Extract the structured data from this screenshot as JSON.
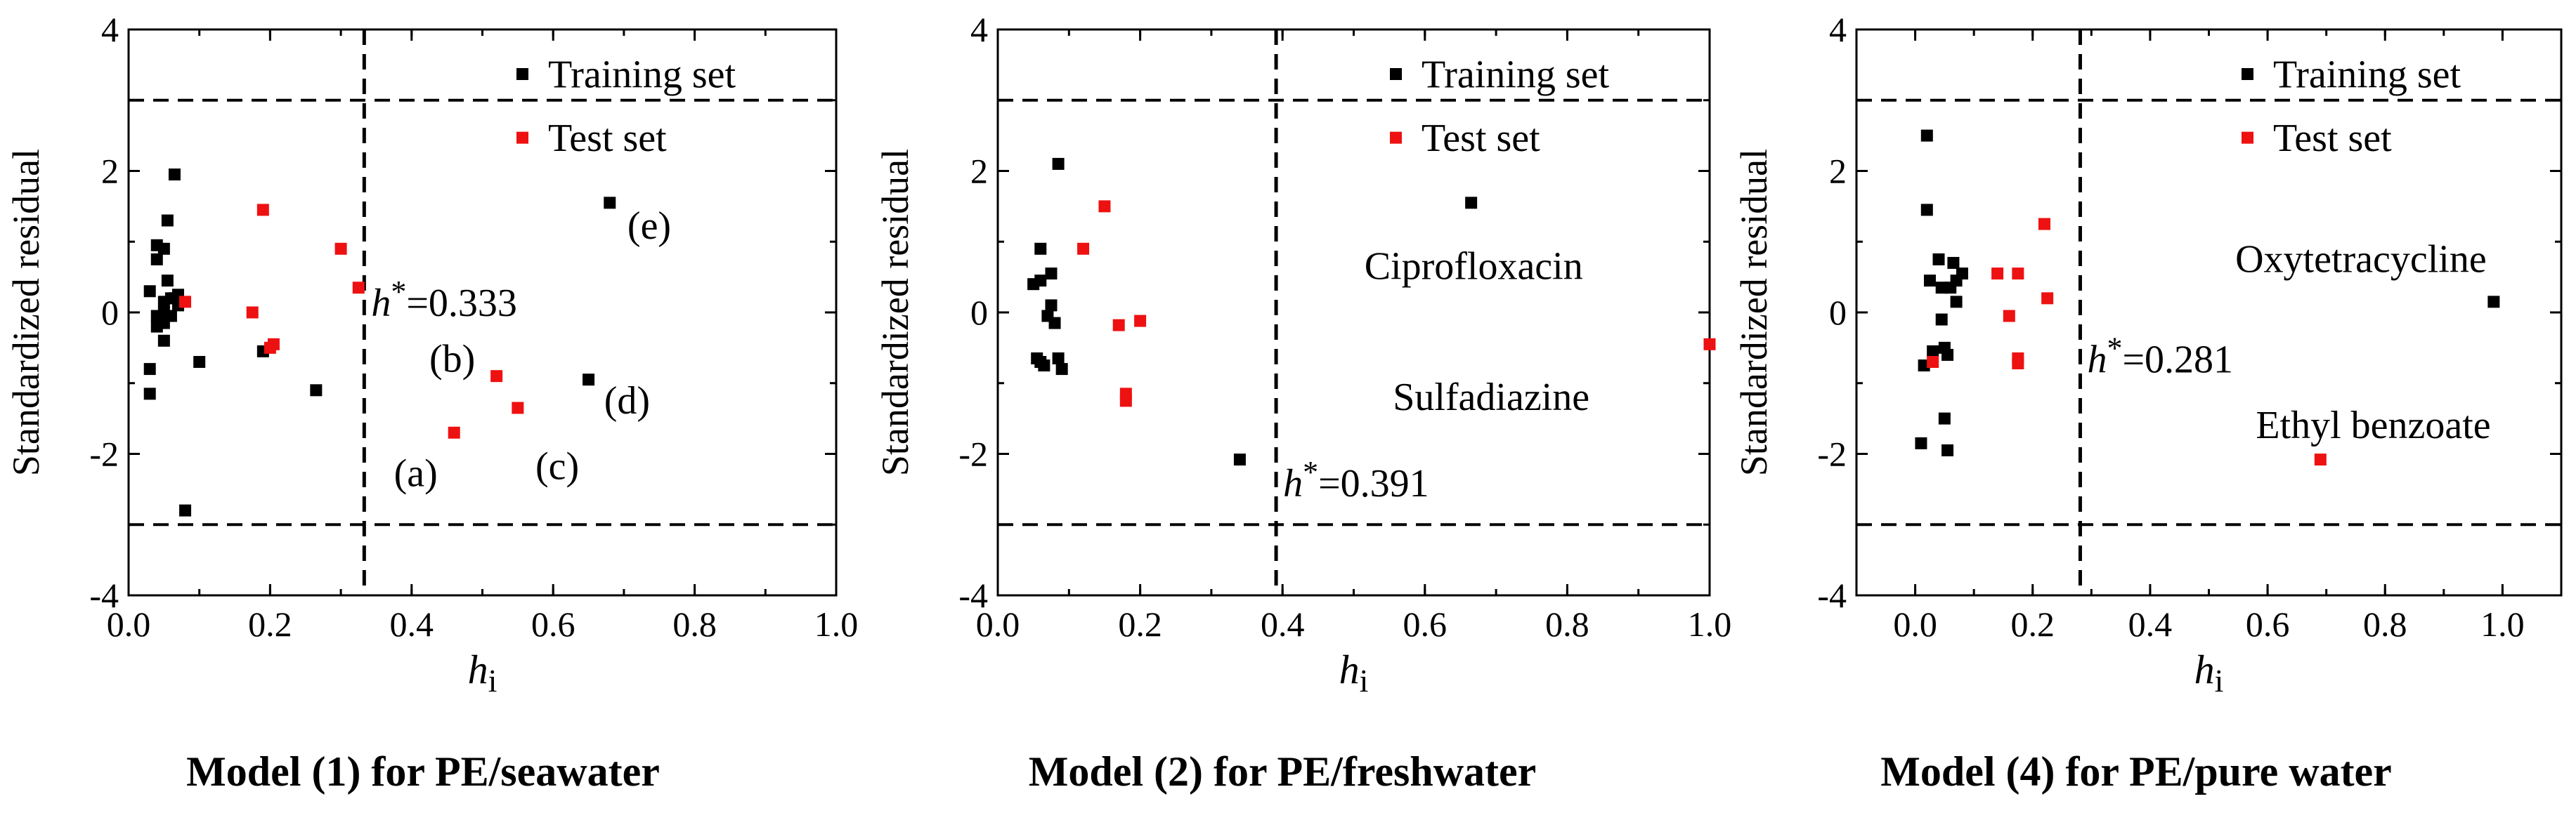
{
  "colors": {
    "training": "#000000",
    "test": "#ee1111",
    "axis": "#000000"
  },
  "chart_data": [
    {
      "type": "scatter",
      "caption": "Model (1) for PE/seawater",
      "xlabel_main": "h",
      "xlabel_sub": "i",
      "ylabel": "Standardized residual",
      "xlim": [
        0.0,
        1.0
      ],
      "ylim": [
        -4,
        4
      ],
      "xticks": [
        0.0,
        0.2,
        0.4,
        0.6,
        0.8,
        1.0
      ],
      "xtick_labels": [
        "0.0",
        "0.2",
        "0.4",
        "0.6",
        "0.8",
        "1.0"
      ],
      "yticks": [
        -4,
        -2,
        0,
        2,
        4
      ],
      "ytick_labels": [
        "-4",
        "-2",
        "0",
        "2",
        "4"
      ],
      "hstar": 0.333,
      "hstar_label": "=0.333",
      "hlines": [
        3,
        -3
      ],
      "legend": [
        "Training set",
        "Test set"
      ],
      "training": [
        [
          0.03,
          0.3
        ],
        [
          0.03,
          -0.8
        ],
        [
          0.03,
          -1.15
        ],
        [
          0.04,
          0.95
        ],
        [
          0.04,
          0.75
        ],
        [
          0.04,
          -0.05
        ],
        [
          0.04,
          -0.2
        ],
        [
          0.05,
          0.9
        ],
        [
          0.05,
          0.15
        ],
        [
          0.05,
          0.0
        ],
        [
          0.05,
          -0.15
        ],
        [
          0.05,
          -0.4
        ],
        [
          0.055,
          1.3
        ],
        [
          0.055,
          0.45
        ],
        [
          0.06,
          0.2
        ],
        [
          0.06,
          -0.05
        ],
        [
          0.065,
          1.95
        ],
        [
          0.065,
          0.2
        ],
        [
          0.07,
          0.25
        ],
        [
          0.07,
          0.1
        ],
        [
          0.08,
          -2.8
        ],
        [
          0.1,
          -0.7
        ],
        [
          0.19,
          -0.55
        ],
        [
          0.265,
          -1.1
        ],
        [
          0.65,
          -0.95
        ],
        [
          0.68,
          1.55
        ]
      ],
      "test": [
        [
          0.08,
          0.15
        ],
        [
          0.175,
          0.0
        ],
        [
          0.19,
          1.45
        ],
        [
          0.2,
          -0.5
        ],
        [
          0.205,
          -0.45
        ],
        [
          0.3,
          0.9
        ],
        [
          0.325,
          0.35
        ],
        [
          0.46,
          -1.7
        ],
        [
          0.52,
          -0.9
        ],
        [
          0.55,
          -1.35
        ]
      ],
      "annotations": [
        {
          "text": "(a)",
          "x": 0.375,
          "y": -2.28
        },
        {
          "text": "(b)",
          "x": 0.425,
          "y": -0.66
        },
        {
          "text": "(c)",
          "x": 0.575,
          "y": -2.18
        },
        {
          "text": "(d)",
          "x": 0.672,
          "y": -1.25
        },
        {
          "text": "(e)",
          "x": 0.705,
          "y": 1.22
        }
      ]
    },
    {
      "type": "scatter",
      "caption": "Model (2) for PE/freshwater",
      "xlabel_main": "h",
      "xlabel_sub": "i",
      "ylabel": "Standardized residual",
      "xlim": [
        0.0,
        1.0
      ],
      "ylim": [
        -4,
        4
      ],
      "xticks": [
        0.0,
        0.2,
        0.4,
        0.6,
        0.8,
        1.0
      ],
      "xtick_labels": [
        "0.0",
        "0.2",
        "0.4",
        "0.6",
        "0.8",
        "1.0"
      ],
      "yticks": [
        -4,
        -2,
        0,
        2,
        4
      ],
      "ytick_labels": [
        "-4",
        "-2",
        "0",
        "2",
        "4"
      ],
      "hstar": 0.391,
      "hstar_label": "=0.391",
      "hlines": [
        3,
        -3
      ],
      "legend": [
        "Training set",
        "Test set"
      ],
      "training": [
        [
          0.05,
          0.4
        ],
        [
          0.055,
          -0.65
        ],
        [
          0.06,
          0.9
        ],
        [
          0.06,
          0.45
        ],
        [
          0.06,
          -0.7
        ],
        [
          0.065,
          -0.75
        ],
        [
          0.07,
          -0.05
        ],
        [
          0.075,
          0.55
        ],
        [
          0.075,
          0.1
        ],
        [
          0.08,
          -0.15
        ],
        [
          0.085,
          2.1
        ],
        [
          0.085,
          -0.65
        ],
        [
          0.09,
          -0.8
        ],
        [
          0.34,
          -2.08
        ],
        [
          0.665,
          1.55
        ]
      ],
      "test": [
        [
          0.12,
          0.9
        ],
        [
          0.15,
          1.5
        ],
        [
          0.17,
          -0.18
        ],
        [
          0.18,
          -1.15
        ],
        [
          0.18,
          -1.25
        ],
        [
          0.2,
          -0.12
        ],
        [
          1.0,
          -0.45
        ]
      ],
      "annotations": [
        {
          "text": "Ciprofloxacin",
          "x": 0.515,
          "y": 0.65
        },
        {
          "text": "Sulfadiazine",
          "x": 0.555,
          "y": -1.2
        }
      ]
    },
    {
      "type": "scatter",
      "caption": "Model (4) for PE/pure water",
      "xlabel_main": "h",
      "xlabel_sub": "i",
      "ylabel": "Standardized residual",
      "xlim": [
        -0.1,
        1.1
      ],
      "ylim": [
        -4,
        4
      ],
      "xticks": [
        0.0,
        0.2,
        0.4,
        0.6,
        0.8,
        1.0
      ],
      "xtick_labels": [
        "0.0",
        "0.2",
        "0.4",
        "0.6",
        "0.8",
        "1.0"
      ],
      "yticks": [
        -4,
        -2,
        0,
        2,
        4
      ],
      "ytick_labels": [
        "-4",
        "-2",
        "0",
        "2",
        "4"
      ],
      "hstar": 0.281,
      "hstar_label": "=0.281",
      "hlines": [
        3,
        -3
      ],
      "legend": [
        "Training set",
        "Test set"
      ],
      "training": [
        [
          0.01,
          -1.85
        ],
        [
          0.015,
          -0.75
        ],
        [
          0.02,
          2.5
        ],
        [
          0.02,
          1.45
        ],
        [
          0.025,
          0.45
        ],
        [
          0.03,
          -0.55
        ],
        [
          0.04,
          0.75
        ],
        [
          0.045,
          0.35
        ],
        [
          0.045,
          -0.1
        ],
        [
          0.05,
          -0.5
        ],
        [
          0.05,
          -1.5
        ],
        [
          0.055,
          -1.95
        ],
        [
          0.055,
          -0.6
        ],
        [
          0.06,
          0.35
        ],
        [
          0.065,
          0.7
        ],
        [
          0.07,
          0.45
        ],
        [
          0.07,
          0.15
        ],
        [
          0.08,
          0.55
        ],
        [
          0.985,
          0.15
        ]
      ],
      "test": [
        [
          0.03,
          -0.7
        ],
        [
          0.14,
          0.55
        ],
        [
          0.16,
          -0.05
        ],
        [
          0.175,
          0.55
        ],
        [
          0.175,
          -0.65
        ],
        [
          0.175,
          -0.72
        ],
        [
          0.22,
          1.25
        ],
        [
          0.225,
          0.2
        ],
        [
          0.69,
          -2.08
        ]
      ],
      "annotations": [
        {
          "text": "Oxytetracycline",
          "x": 0.545,
          "y": 0.75
        },
        {
          "text": "Ethyl benzoate",
          "x": 0.58,
          "y": -1.6
        }
      ]
    }
  ]
}
